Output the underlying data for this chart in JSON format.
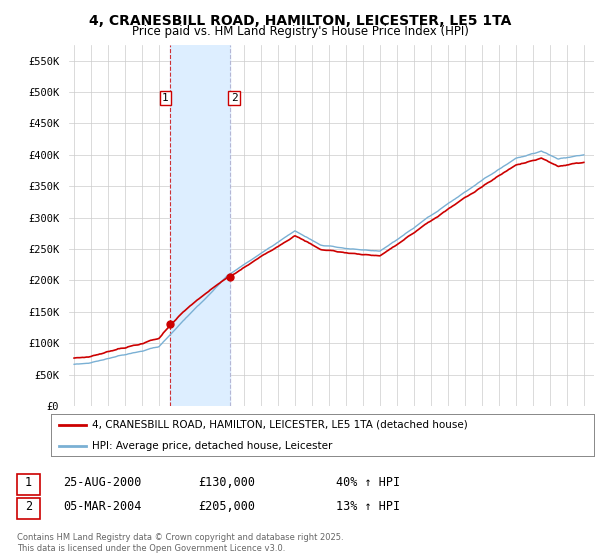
{
  "title": "4, CRANESBILL ROAD, HAMILTON, LEICESTER, LE5 1TA",
  "subtitle": "Price paid vs. HM Land Registry's House Price Index (HPI)",
  "ylim": [
    0,
    575000
  ],
  "yticks": [
    0,
    50000,
    100000,
    150000,
    200000,
    250000,
    300000,
    350000,
    400000,
    450000,
    500000,
    550000
  ],
  "ytick_labels": [
    "£0",
    "£50K",
    "£100K",
    "£150K",
    "£200K",
    "£250K",
    "£300K",
    "£350K",
    "£400K",
    "£450K",
    "£500K",
    "£550K"
  ],
  "legend_line1": "4, CRANESBILL ROAD, HAMILTON, LEICESTER, LE5 1TA (detached house)",
  "legend_line2": "HPI: Average price, detached house, Leicester",
  "table_row1": [
    "1",
    "25-AUG-2000",
    "£130,000",
    "40% ↑ HPI"
  ],
  "table_row2": [
    "2",
    "05-MAR-2004",
    "£205,000",
    "13% ↑ HPI"
  ],
  "footer": "Contains HM Land Registry data © Crown copyright and database right 2025.\nThis data is licensed under the Open Government Licence v3.0.",
  "red_color": "#cc0000",
  "blue_color": "#7ab0d4",
  "shaded_color": "#ddeeff",
  "background_color": "#ffffff",
  "sale1_t": 2000.625,
  "sale2_t": 2004.167,
  "sale1_value": 130000,
  "sale2_value": 205000
}
